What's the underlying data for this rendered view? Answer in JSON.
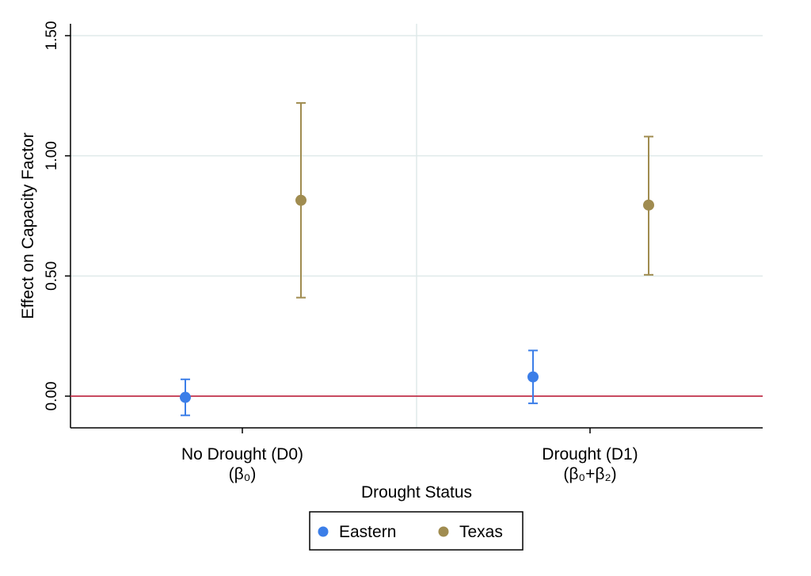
{
  "chart_data": {
    "type": "scatter",
    "xlabel": "Drought Status",
    "ylabel": "Effect on Capacity Factor",
    "ylim": [
      -0.13,
      1.5
    ],
    "yticks": [
      "0.00",
      "0.50",
      "1.00",
      "1.50"
    ],
    "categories": [
      {
        "label": "No Drought (D0)",
        "sublabel": "(β₀)"
      },
      {
        "label": "Drought (D1)",
        "sublabel": "(β₀+β₂)"
      }
    ],
    "reference_line": 0,
    "grid": true,
    "legend_position": "bottom",
    "series": [
      {
        "name": "Eastern",
        "color": "#3b7ee8",
        "points": [
          {
            "category": 0,
            "value": -0.005,
            "lower": -0.08,
            "upper": 0.07
          },
          {
            "category": 1,
            "value": 0.08,
            "lower": -0.03,
            "upper": 0.19
          }
        ]
      },
      {
        "name": "Texas",
        "color": "#a08c50",
        "points": [
          {
            "category": 0,
            "value": 0.815,
            "lower": 0.41,
            "upper": 1.22
          },
          {
            "category": 1,
            "value": 0.795,
            "lower": 0.505,
            "upper": 1.08
          }
        ]
      }
    ],
    "colors": {
      "refline": "#c0304a",
      "grid": "#dfeaea",
      "axis": "#000000"
    }
  }
}
